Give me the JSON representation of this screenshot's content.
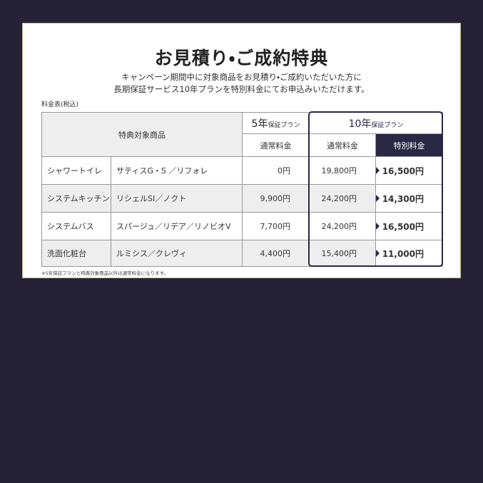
{
  "header": {
    "title": "お見積り・ご成約特典",
    "subtitle": [
      "キャンペーン期間中に対象商品をお見積り・ご成約いただいた方に",
      "長期保証サービス10年プランを特別料金にてお申込みいただけます。"
    ]
  },
  "table": {
    "caption": "料金表(税込)",
    "head": {
      "target": "特典対象商品",
      "plan5": {
        "main": "5年",
        "sub": "保証プラン"
      },
      "plan10": {
        "main": "10年",
        "sub": "保証プラン"
      },
      "columns": [
        "通常料金",
        "通常料金",
        "特別料金"
      ]
    },
    "rows": [
      [
        "シャワートイレ",
        "サティスG・S ／リフォレ",
        "0円",
        "19,800円",
        "16,500円"
      ],
      [
        "システムキッチン",
        "リシェルSI／ノクト",
        "9,900円",
        "24,200円",
        "14,300円"
      ],
      [
        "システムバス",
        "スパージュ／リデア／リノビオV",
        "7,700円",
        "24,200円",
        "16,500円"
      ],
      [
        "洗面化粧台",
        "ルミシス／クレヴィ",
        "4,400円",
        "15,400円",
        "11,000円"
      ]
    ],
    "note": "※5年保証プランと特典対象商品以外は通常料金になります。"
  }
}
